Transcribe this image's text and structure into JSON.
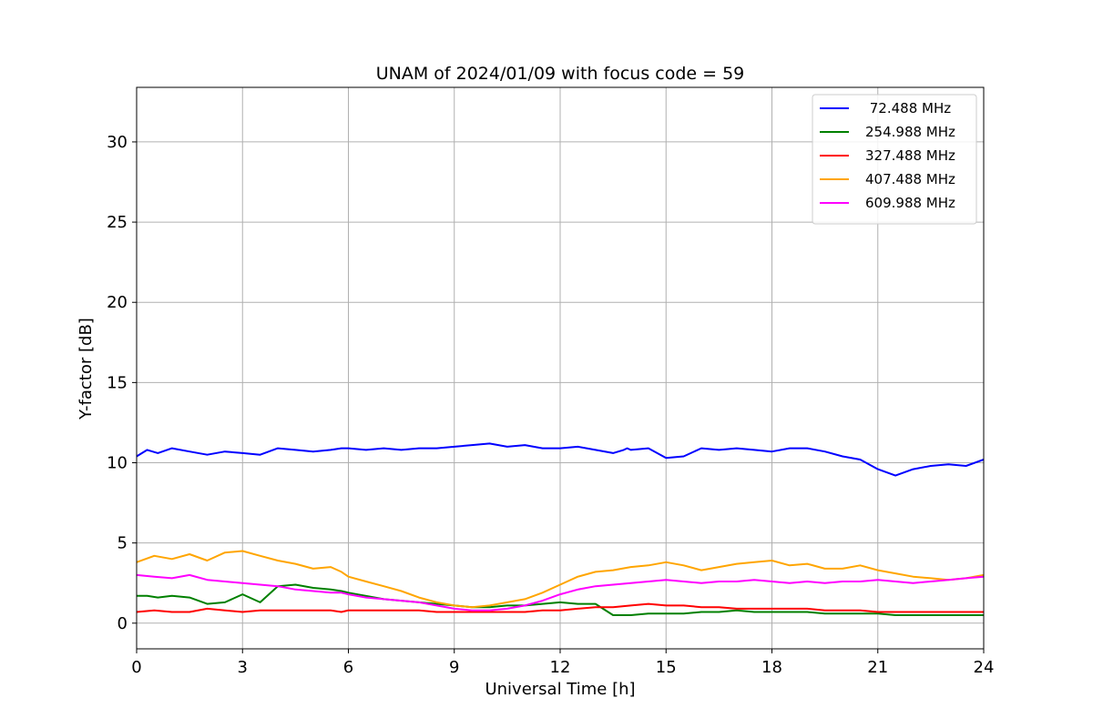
{
  "chart_data": {
    "type": "line",
    "title": "UNAM of 2024/01/09 with focus code = 59",
    "xlabel": "Universal Time [h]",
    "ylabel": "Y-factor [dB]",
    "xlim": [
      0,
      24
    ],
    "ylim": [
      -1.6,
      33.4
    ],
    "xticks": [
      0,
      3,
      6,
      9,
      12,
      15,
      18,
      21,
      24
    ],
    "yticks": [
      0,
      5,
      10,
      15,
      20,
      25,
      30
    ],
    "grid": true,
    "legend_position": "top-right",
    "series": [
      {
        "name": " 72.488 MHz",
        "color": "#0000ff",
        "x": [
          0.0,
          0.3,
          0.6,
          1.0,
          1.5,
          2.0,
          2.5,
          3.0,
          3.5,
          4.0,
          4.5,
          5.0,
          5.5,
          5.8,
          6.0,
          6.5,
          7.0,
          7.5,
          8.0,
          8.5,
          9.0,
          9.5,
          10.0,
          10.5,
          11.0,
          11.5,
          12.0,
          12.5,
          13.0,
          13.5,
          13.8,
          13.9,
          14.0,
          14.5,
          15.0,
          15.5,
          16.0,
          16.5,
          17.0,
          17.5,
          18.0,
          18.5,
          19.0,
          19.5,
          20.0,
          20.5,
          21.0,
          21.5,
          22.0,
          22.5,
          23.0,
          23.5,
          24.0
        ],
        "values": [
          10.4,
          10.8,
          10.6,
          10.9,
          10.7,
          10.5,
          10.7,
          10.6,
          10.5,
          10.9,
          10.8,
          10.7,
          10.8,
          10.9,
          10.9,
          10.8,
          10.9,
          10.8,
          10.9,
          10.9,
          11.0,
          11.1,
          11.2,
          11.0,
          11.1,
          10.9,
          10.9,
          11.0,
          10.8,
          10.6,
          10.8,
          10.9,
          10.8,
          10.9,
          10.3,
          10.4,
          10.9,
          10.8,
          10.9,
          10.8,
          10.7,
          10.9,
          10.9,
          10.7,
          10.4,
          10.2,
          9.6,
          9.2,
          9.6,
          9.8,
          9.9,
          9.8,
          10.2
        ]
      },
      {
        "name": "254.988 MHz",
        "color": "#008000",
        "x": [
          0.0,
          0.3,
          0.6,
          1.0,
          1.5,
          2.0,
          2.5,
          3.0,
          3.5,
          4.0,
          4.5,
          5.0,
          5.5,
          5.8,
          6.0,
          6.5,
          7.0,
          7.5,
          8.0,
          8.5,
          9.0,
          9.5,
          10.0,
          10.5,
          11.0,
          11.5,
          12.0,
          12.5,
          13.0,
          13.5,
          14.0,
          14.5,
          15.0,
          15.5,
          16.0,
          16.5,
          17.0,
          17.5,
          18.0,
          18.5,
          19.0,
          19.5,
          20.0,
          20.5,
          21.0,
          21.5,
          22.0,
          22.5,
          23.0,
          23.5,
          24.0
        ],
        "values": [
          1.7,
          1.7,
          1.6,
          1.7,
          1.6,
          1.2,
          1.3,
          1.8,
          1.3,
          2.3,
          2.4,
          2.2,
          2.1,
          2.0,
          1.9,
          1.7,
          1.5,
          1.4,
          1.3,
          1.2,
          1.1,
          1.0,
          1.0,
          1.1,
          1.1,
          1.2,
          1.3,
          1.2,
          1.2,
          0.5,
          0.5,
          0.6,
          0.6,
          0.6,
          0.7,
          0.7,
          0.8,
          0.7,
          0.7,
          0.7,
          0.7,
          0.6,
          0.6,
          0.6,
          0.6,
          0.5,
          0.5,
          0.5,
          0.5,
          0.5,
          0.5
        ]
      },
      {
        "name": "327.488 MHz",
        "color": "#ff0000",
        "x": [
          0.0,
          0.5,
          1.0,
          1.5,
          2.0,
          2.5,
          3.0,
          3.5,
          4.0,
          4.5,
          5.0,
          5.5,
          5.8,
          6.0,
          6.5,
          7.0,
          7.5,
          8.0,
          8.5,
          9.0,
          9.5,
          10.0,
          10.5,
          11.0,
          11.5,
          12.0,
          12.5,
          13.0,
          13.5,
          14.0,
          14.5,
          15.0,
          15.5,
          16.0,
          16.5,
          17.0,
          17.5,
          18.0,
          18.5,
          19.0,
          19.5,
          20.0,
          20.5,
          21.0,
          21.5,
          22.0,
          22.5,
          23.0,
          23.5,
          24.0
        ],
        "values": [
          0.7,
          0.8,
          0.7,
          0.7,
          0.9,
          0.8,
          0.7,
          0.8,
          0.8,
          0.8,
          0.8,
          0.8,
          0.7,
          0.8,
          0.8,
          0.8,
          0.8,
          0.8,
          0.7,
          0.7,
          0.7,
          0.7,
          0.7,
          0.7,
          0.8,
          0.8,
          0.9,
          1.0,
          1.0,
          1.1,
          1.2,
          1.1,
          1.1,
          1.0,
          1.0,
          0.9,
          0.9,
          0.9,
          0.9,
          0.9,
          0.8,
          0.8,
          0.8,
          0.7,
          0.7,
          0.7,
          0.7,
          0.7,
          0.7,
          0.7
        ]
      },
      {
        "name": "407.488 MHz",
        "color": "#ffa500",
        "x": [
          0.0,
          0.5,
          1.0,
          1.5,
          2.0,
          2.5,
          3.0,
          3.5,
          4.0,
          4.5,
          5.0,
          5.5,
          5.8,
          6.0,
          6.5,
          7.0,
          7.5,
          8.0,
          8.5,
          9.0,
          9.5,
          10.0,
          10.5,
          11.0,
          11.5,
          12.0,
          12.5,
          13.0,
          13.5,
          14.0,
          14.5,
          15.0,
          15.5,
          16.0,
          16.5,
          17.0,
          17.5,
          18.0,
          18.5,
          19.0,
          19.5,
          20.0,
          20.5,
          21.0,
          21.5,
          22.0,
          22.5,
          23.0,
          23.5,
          24.0
        ],
        "values": [
          3.8,
          4.2,
          4.0,
          4.3,
          3.9,
          4.4,
          4.5,
          4.2,
          3.9,
          3.7,
          3.4,
          3.5,
          3.2,
          2.9,
          2.6,
          2.3,
          2.0,
          1.6,
          1.3,
          1.1,
          1.0,
          1.1,
          1.3,
          1.5,
          1.9,
          2.4,
          2.9,
          3.2,
          3.3,
          3.5,
          3.6,
          3.8,
          3.6,
          3.3,
          3.5,
          3.7,
          3.8,
          3.9,
          3.6,
          3.7,
          3.4,
          3.4,
          3.6,
          3.3,
          3.1,
          2.9,
          2.8,
          2.7,
          2.8,
          3.0
        ]
      },
      {
        "name": "609.988 MHz",
        "color": "#ff00ff",
        "x": [
          0.0,
          0.5,
          1.0,
          1.5,
          2.0,
          2.5,
          3.0,
          3.5,
          4.0,
          4.5,
          5.0,
          5.5,
          5.8,
          6.0,
          6.5,
          7.0,
          7.5,
          8.0,
          8.5,
          9.0,
          9.5,
          10.0,
          10.5,
          11.0,
          11.5,
          12.0,
          12.5,
          13.0,
          13.5,
          14.0,
          14.5,
          15.0,
          15.5,
          16.0,
          16.5,
          17.0,
          17.5,
          18.0,
          18.5,
          19.0,
          19.5,
          20.0,
          20.5,
          21.0,
          21.5,
          22.0,
          22.5,
          23.0,
          23.5,
          24.0
        ],
        "values": [
          3.0,
          2.9,
          2.8,
          3.0,
          2.7,
          2.6,
          2.5,
          2.4,
          2.3,
          2.1,
          2.0,
          1.9,
          1.9,
          1.8,
          1.6,
          1.5,
          1.4,
          1.3,
          1.1,
          0.9,
          0.8,
          0.8,
          0.9,
          1.1,
          1.4,
          1.8,
          2.1,
          2.3,
          2.4,
          2.5,
          2.6,
          2.7,
          2.6,
          2.5,
          2.6,
          2.6,
          2.7,
          2.6,
          2.5,
          2.6,
          2.5,
          2.6,
          2.6,
          2.7,
          2.6,
          2.5,
          2.6,
          2.7,
          2.8,
          2.9
        ]
      }
    ]
  }
}
